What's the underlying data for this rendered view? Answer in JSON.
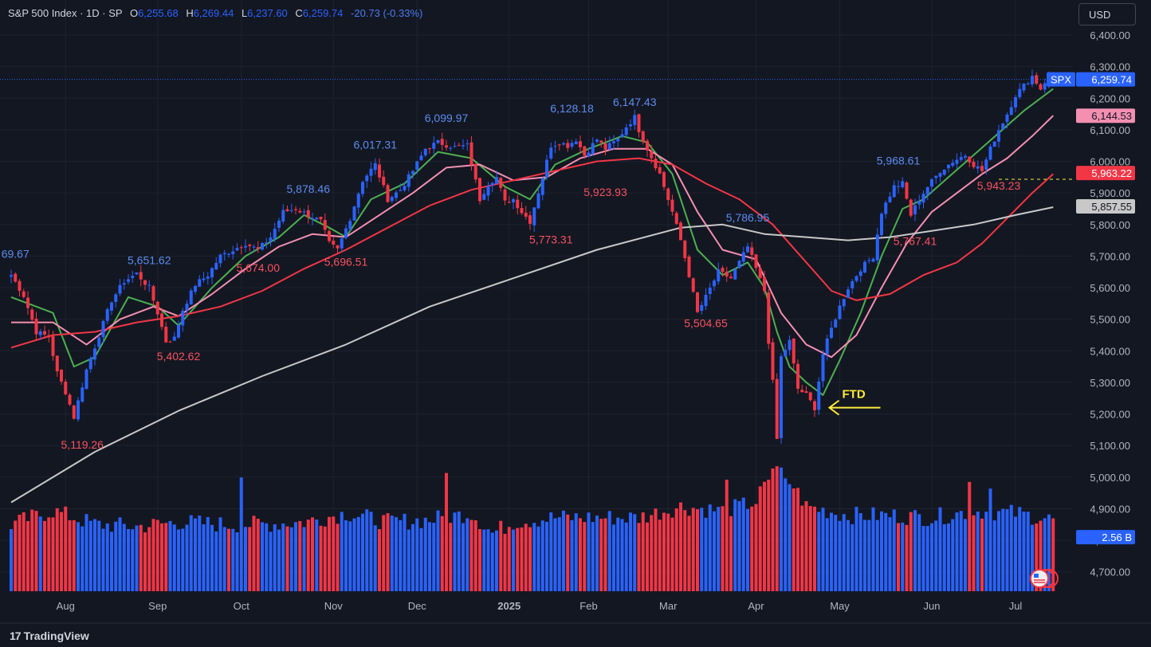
{
  "header": {
    "symbol": "S&P 500 Index · 1D · SP",
    "o_label": "O",
    "o_value": "6,255.68",
    "h_label": "H",
    "h_value": "6,269.44",
    "l_label": "L",
    "l_value": "6,237.60",
    "c_label": "C",
    "c_value": "6,259.74",
    "change": "-20.73 (-0.33%)"
  },
  "currency_button": "USD",
  "branding": {
    "logo": "17",
    "name": "TradingView"
  },
  "colors": {
    "background": "#131722",
    "grid": "#1e2230",
    "up": "#2962ff",
    "down": "#f23645",
    "ema_fast": "#4caf50",
    "ema_mid": "#f48fb1",
    "ema_slow": "#f23645",
    "ma_long": "#c8c8c8",
    "annotation": "#ffeb3b"
  },
  "chart_data": {
    "type": "candlestick",
    "y_ticks": [
      "6,400.00",
      "6,300.00",
      "6,200.00",
      "6,100.00",
      "6,000.00",
      "5,900.00",
      "5,800.00",
      "5,700.00",
      "5,600.00",
      "5,500.00",
      "5,400.00",
      "5,300.00",
      "5,200.00",
      "5,100.00",
      "5,000.00",
      "4,900.00",
      "4,800.00",
      "4,700.00"
    ],
    "ylim": [
      4650,
      6450
    ],
    "x_ticks": [
      "Aug",
      "Sep",
      "Oct",
      "Nov",
      "Dec",
      "2025",
      "Feb",
      "Mar",
      "Apr",
      "May",
      "Jun",
      "Jul"
    ],
    "x_tick_bars": [
      13,
      35,
      55,
      77,
      97,
      119,
      138,
      157,
      178,
      198,
      220,
      240
    ],
    "close_path": [
      [
        0,
        5640
      ],
      [
        3,
        5575
      ],
      [
        6,
        5460
      ],
      [
        9,
        5445
      ],
      [
        11,
        5330
      ],
      [
        13,
        5270
      ],
      [
        15,
        5190
      ],
      [
        18,
        5340
      ],
      [
        21,
        5450
      ],
      [
        24,
        5560
      ],
      [
        27,
        5620
      ],
      [
        30,
        5645
      ],
      [
        33,
        5600
      ],
      [
        35,
        5520
      ],
      [
        37,
        5430
      ],
      [
        39,
        5440
      ],
      [
        41,
        5530
      ],
      [
        44,
        5610
      ],
      [
        47,
        5640
      ],
      [
        50,
        5700
      ],
      [
        53,
        5720
      ],
      [
        56,
        5740
      ],
      [
        59,
        5720
      ],
      [
        62,
        5760
      ],
      [
        65,
        5840
      ],
      [
        68,
        5850
      ],
      [
        71,
        5830
      ],
      [
        74,
        5810
      ],
      [
        76,
        5740
      ],
      [
        78,
        5720
      ],
      [
        81,
        5820
      ],
      [
        84,
        5940
      ],
      [
        87,
        5990
      ],
      [
        90,
        5880
      ],
      [
        93,
        5910
      ],
      [
        96,
        5970
      ],
      [
        99,
        6040
      ],
      [
        102,
        6060
      ],
      [
        106,
        6045
      ],
      [
        109,
        6050
      ],
      [
        112,
        5880
      ],
      [
        114,
        5930
      ],
      [
        116,
        5950
      ],
      [
        118,
        5870
      ],
      [
        120,
        5880
      ],
      [
        122,
        5840
      ],
      [
        124,
        5810
      ],
      [
        127,
        5950
      ],
      [
        129,
        6050
      ],
      [
        131,
        6060
      ],
      [
        133,
        6050
      ],
      [
        135,
        6070
      ],
      [
        137,
        6020
      ],
      [
        140,
        6070
      ],
      [
        142,
        6040
      ],
      [
        145,
        6070
      ],
      [
        147,
        6110
      ],
      [
        149,
        6140
      ],
      [
        150,
        6100
      ],
      [
        152,
        6040
      ],
      [
        155,
        5960
      ],
      [
        158,
        5840
      ],
      [
        160,
        5750
      ],
      [
        162,
        5640
      ],
      [
        164,
        5520
      ],
      [
        166,
        5570
      ],
      [
        169,
        5650
      ],
      [
        172,
        5630
      ],
      [
        174,
        5680
      ],
      [
        176,
        5730
      ],
      [
        178,
        5660
      ],
      [
        180,
        5590
      ],
      [
        181,
        5430
      ],
      [
        182,
        5300
      ],
      [
        183,
        5120
      ],
      [
        184,
        5380
      ],
      [
        186,
        5430
      ],
      [
        188,
        5280
      ],
      [
        190,
        5260
      ],
      [
        192,
        5220
      ],
      [
        194,
        5390
      ],
      [
        196,
        5470
      ],
      [
        198,
        5540
      ],
      [
        200,
        5600
      ],
      [
        203,
        5660
      ],
      [
        206,
        5700
      ],
      [
        208,
        5840
      ],
      [
        211,
        5920
      ],
      [
        213,
        5930
      ],
      [
        215,
        5830
      ],
      [
        217,
        5880
      ],
      [
        219,
        5920
      ],
      [
        222,
        5970
      ],
      [
        225,
        6000
      ],
      [
        228,
        6020
      ],
      [
        230,
        5990
      ],
      [
        232,
        5970
      ],
      [
        234,
        6040
      ],
      [
        236,
        6100
      ],
      [
        238,
        6150
      ],
      [
        240,
        6210
      ],
      [
        242,
        6240
      ],
      [
        244,
        6270
      ],
      [
        246,
        6230
      ],
      [
        248,
        6275
      ],
      [
        249,
        6260
      ]
    ],
    "volume_path": [
      [
        0,
        3.0
      ],
      [
        10,
        3.6
      ],
      [
        20,
        3.0
      ],
      [
        30,
        2.9
      ],
      [
        40,
        3.1
      ],
      [
        50,
        3.0
      ],
      [
        60,
        3.0
      ],
      [
        70,
        3.1
      ],
      [
        80,
        3.5
      ],
      [
        90,
        3.1
      ],
      [
        100,
        3.2
      ],
      [
        110,
        3.5
      ],
      [
        115,
        2.6
      ],
      [
        120,
        3.1
      ],
      [
        130,
        3.3
      ],
      [
        140,
        3.3
      ],
      [
        150,
        3.3
      ],
      [
        160,
        3.8
      ],
      [
        170,
        3.6
      ],
      [
        178,
        4.0
      ],
      [
        182,
        5.5
      ],
      [
        186,
        5.0
      ],
      [
        190,
        3.8
      ],
      [
        200,
        3.4
      ],
      [
        210,
        3.4
      ],
      [
        220,
        3.3
      ],
      [
        230,
        3.6
      ],
      [
        240,
        3.5
      ],
      [
        249,
        3.2
      ]
    ],
    "volume_spikes": [
      [
        55,
        5.1
      ],
      [
        104,
        5.3
      ],
      [
        171,
        5.0
      ],
      [
        181,
        5.0
      ],
      [
        182,
        5.5
      ],
      [
        183,
        5.6
      ],
      [
        186,
        4.8
      ],
      [
        229,
        4.9
      ],
      [
        234,
        4.6
      ]
    ],
    "series": [
      {
        "name": "EMA fast",
        "color": "#4caf50",
        "path": [
          [
            0,
            5570
          ],
          [
            10,
            5520
          ],
          [
            15,
            5350
          ],
          [
            20,
            5380
          ],
          [
            28,
            5570
          ],
          [
            35,
            5540
          ],
          [
            40,
            5480
          ],
          [
            48,
            5600
          ],
          [
            56,
            5700
          ],
          [
            64,
            5760
          ],
          [
            70,
            5830
          ],
          [
            76,
            5790
          ],
          [
            80,
            5760
          ],
          [
            86,
            5880
          ],
          [
            94,
            5930
          ],
          [
            102,
            6030
          ],
          [
            110,
            6010
          ],
          [
            118,
            5920
          ],
          [
            124,
            5880
          ],
          [
            130,
            5990
          ],
          [
            138,
            6040
          ],
          [
            146,
            6080
          ],
          [
            152,
            6060
          ],
          [
            158,
            5960
          ],
          [
            164,
            5720
          ],
          [
            170,
            5640
          ],
          [
            176,
            5680
          ],
          [
            180,
            5600
          ],
          [
            183,
            5460
          ],
          [
            186,
            5350
          ],
          [
            190,
            5300
          ],
          [
            194,
            5260
          ],
          [
            198,
            5370
          ],
          [
            203,
            5520
          ],
          [
            208,
            5700
          ],
          [
            213,
            5850
          ],
          [
            218,
            5880
          ],
          [
            224,
            5950
          ],
          [
            230,
            6020
          ],
          [
            236,
            6090
          ],
          [
            242,
            6160
          ],
          [
            249,
            6230
          ]
        ]
      },
      {
        "name": "EMA mid",
        "color": "#f48fb1",
        "path": [
          [
            0,
            5490
          ],
          [
            10,
            5490
          ],
          [
            18,
            5420
          ],
          [
            26,
            5500
          ],
          [
            34,
            5540
          ],
          [
            40,
            5510
          ],
          [
            48,
            5580
          ],
          [
            56,
            5660
          ],
          [
            64,
            5730
          ],
          [
            72,
            5770
          ],
          [
            80,
            5760
          ],
          [
            88,
            5830
          ],
          [
            96,
            5900
          ],
          [
            104,
            5980
          ],
          [
            112,
            5990
          ],
          [
            120,
            5940
          ],
          [
            128,
            5950
          ],
          [
            136,
            6010
          ],
          [
            144,
            6040
          ],
          [
            152,
            6040
          ],
          [
            158,
            5990
          ],
          [
            164,
            5840
          ],
          [
            170,
            5720
          ],
          [
            178,
            5690
          ],
          [
            184,
            5520
          ],
          [
            190,
            5420
          ],
          [
            196,
            5380
          ],
          [
            202,
            5450
          ],
          [
            208,
            5600
          ],
          [
            214,
            5740
          ],
          [
            220,
            5840
          ],
          [
            226,
            5900
          ],
          [
            232,
            5960
          ],
          [
            238,
            6010
          ],
          [
            244,
            6080
          ],
          [
            249,
            6145
          ]
        ]
      },
      {
        "name": "EMA slow",
        "color": "#f23645",
        "path": [
          [
            0,
            5410
          ],
          [
            10,
            5450
          ],
          [
            20,
            5460
          ],
          [
            30,
            5490
          ],
          [
            40,
            5510
          ],
          [
            50,
            5540
          ],
          [
            60,
            5590
          ],
          [
            70,
            5660
          ],
          [
            80,
            5720
          ],
          [
            90,
            5790
          ],
          [
            100,
            5860
          ],
          [
            110,
            5910
          ],
          [
            120,
            5940
          ],
          [
            130,
            5970
          ],
          [
            140,
            6000
          ],
          [
            150,
            6010
          ],
          [
            158,
            5990
          ],
          [
            166,
            5930
          ],
          [
            174,
            5880
          ],
          [
            182,
            5800
          ],
          [
            190,
            5680
          ],
          [
            196,
            5590
          ],
          [
            202,
            5560
          ],
          [
            210,
            5580
          ],
          [
            218,
            5640
          ],
          [
            226,
            5680
          ],
          [
            232,
            5740
          ],
          [
            238,
            5820
          ],
          [
            244,
            5900
          ],
          [
            249,
            5960
          ]
        ]
      },
      {
        "name": "MA long",
        "color": "#c8c8c8",
        "path": [
          [
            0,
            4920
          ],
          [
            20,
            5080
          ],
          [
            40,
            5210
          ],
          [
            60,
            5320
          ],
          [
            80,
            5420
          ],
          [
            100,
            5540
          ],
          [
            120,
            5630
          ],
          [
            140,
            5720
          ],
          [
            160,
            5790
          ],
          [
            170,
            5800
          ],
          [
            180,
            5770
          ],
          [
            190,
            5760
          ],
          [
            200,
            5750
          ],
          [
            210,
            5760
          ],
          [
            220,
            5780
          ],
          [
            230,
            5800
          ],
          [
            240,
            5830
          ],
          [
            249,
            5855
          ]
        ]
      }
    ],
    "price_labels": [
      {
        "text": "69.67",
        "bar": 1,
        "price": 5695,
        "kind": "high"
      },
      {
        "text": "5,651.62",
        "bar": 33,
        "price": 5675,
        "kind": "high"
      },
      {
        "text": "5,402.62",
        "bar": 40,
        "price": 5370,
        "kind": "low"
      },
      {
        "text": "5,119.26",
        "bar": 17,
        "price": 5090,
        "kind": "low"
      },
      {
        "text": "5,878.46",
        "bar": 71,
        "price": 5900,
        "kind": "high"
      },
      {
        "text": "5,674.00",
        "bar": 59,
        "price": 5650,
        "kind": "low"
      },
      {
        "text": "5,696.51",
        "bar": 80,
        "price": 5670,
        "kind": "low"
      },
      {
        "text": "6,017.31",
        "bar": 87,
        "price": 6040,
        "kind": "high"
      },
      {
        "text": "6,099.97",
        "bar": 104,
        "price": 6125,
        "kind": "high"
      },
      {
        "text": "6,128.18",
        "bar": 134,
        "price": 6155,
        "kind": "high"
      },
      {
        "text": "6,147.43",
        "bar": 149,
        "price": 6175,
        "kind": "high"
      },
      {
        "text": "5,923.93",
        "bar": 142,
        "price": 5890,
        "kind": "low"
      },
      {
        "text": "5,773.31",
        "bar": 129,
        "price": 5740,
        "kind": "low"
      },
      {
        "text": "5,504.65",
        "bar": 166,
        "price": 5475,
        "kind": "low"
      },
      {
        "text": "5,786.95",
        "bar": 176,
        "price": 5810,
        "kind": "high"
      },
      {
        "text": "5,968.61",
        "bar": 212,
        "price": 5990,
        "kind": "high"
      },
      {
        "text": "5,767.41",
        "bar": 216,
        "price": 5735,
        "kind": "low"
      },
      {
        "text": "5,943.23",
        "bar": 236,
        "price": 5910,
        "kind": "low"
      }
    ],
    "axis_badges": [
      {
        "text": "SPX",
        "price": 6259.74,
        "color": "#2962ff",
        "kind": "symbol"
      },
      {
        "text": "6,259.74",
        "price": 6259.74,
        "color": "#2962ff",
        "kind": "axis"
      },
      {
        "text": "6,144.53",
        "price": 6144.53,
        "color": "#f48fb1",
        "kind": "axis"
      },
      {
        "text": "5,963.22",
        "price": 5963.22,
        "color": "#f23645",
        "kind": "axis"
      },
      {
        "text": "5,857.55",
        "price": 5857.55,
        "color": "#c8c8c8",
        "kind": "axis"
      },
      {
        "text": "2.56 B",
        "price": 4810,
        "color": "#2962ff",
        "kind": "axis"
      }
    ],
    "dashed_level": 5943.23,
    "current_price": 6259.74,
    "annotation": {
      "text": "FTD",
      "bar": 194,
      "price": 5220
    }
  }
}
